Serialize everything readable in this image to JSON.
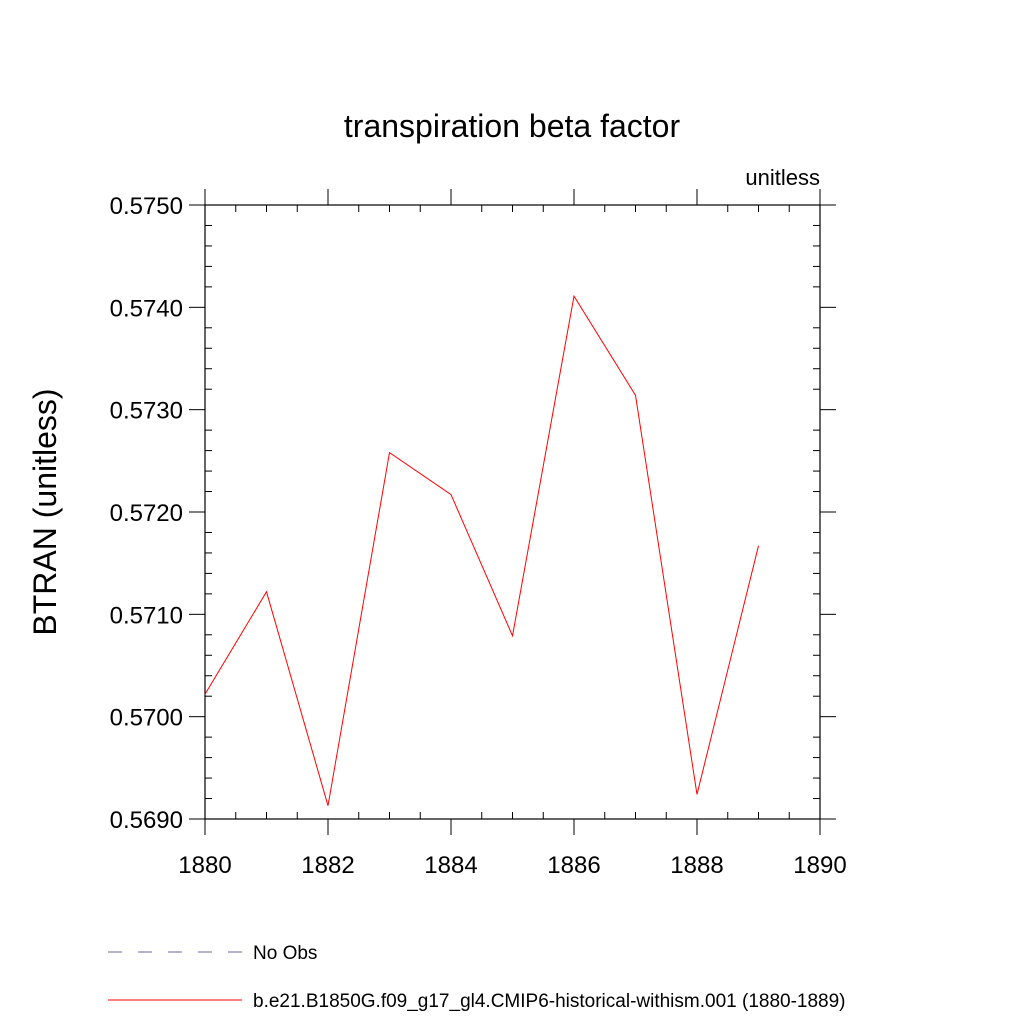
{
  "chart_data": {
    "type": "line",
    "title": "transpiration beta factor",
    "units_label": "unitless",
    "ylabel": "BTRAN  (unitless)",
    "xlabel": "",
    "xlim": [
      1880,
      1890
    ],
    "ylim": [
      0.569,
      0.575
    ],
    "xticks": [
      1880,
      1882,
      1884,
      1886,
      1888,
      1890
    ],
    "xtick_labels": [
      "1880",
      "1882",
      "1884",
      "1886",
      "1888",
      "1890"
    ],
    "yticks": [
      0.569,
      0.57,
      0.571,
      0.572,
      0.573,
      0.574,
      0.575
    ],
    "ytick_labels": [
      "0.5690",
      "0.5700",
      "0.5710",
      "0.5720",
      "0.5730",
      "0.5740",
      "0.5750"
    ],
    "grid": false,
    "legend_position": "bottom",
    "series": [
      {
        "name": "b.e21.B1850G.f09_g17_gl4.CMIP6-historical-withism.001 (1880-1889)",
        "color": "#ff0000",
        "dash": "solid",
        "x": [
          1880,
          1881,
          1882,
          1883,
          1884,
          1885,
          1886,
          1887,
          1888,
          1889
        ],
        "y": [
          0.57022,
          0.57122,
          0.56913,
          0.57258,
          0.57217,
          0.57079,
          0.57411,
          0.57314,
          0.56924,
          0.57167
        ]
      }
    ],
    "legend": [
      {
        "label": "No Obs",
        "color": "#6666aa",
        "dash": "dashed"
      },
      {
        "label": "b.e21.B1850G.f09_g17_gl4.CMIP6-historical-withism.001 (1880-1889)",
        "color": "#ff0000",
        "dash": "solid"
      }
    ]
  }
}
